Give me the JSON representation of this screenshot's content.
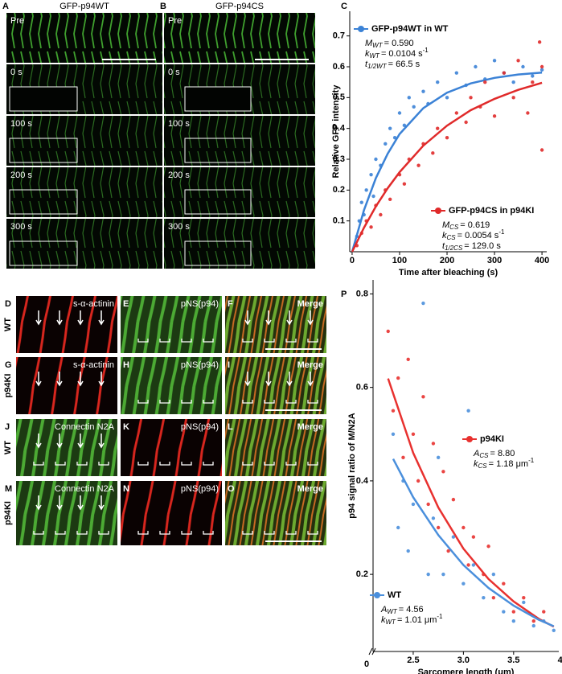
{
  "image_panels": {
    "top": [
      {
        "letter": "A",
        "title": "GFP-p94WT",
        "frames": [
          "Pre",
          "0 s",
          "100 s",
          "200 s",
          "300 s"
        ]
      },
      {
        "letter": "B",
        "title": "GFP-p94CS",
        "frames": [
          "Pre",
          "0 s",
          "100 s",
          "200 s",
          "300 s"
        ]
      }
    ],
    "grid": {
      "row_labels": [
        "WT",
        "p94KI",
        "WT",
        "p94KI"
      ],
      "panels": [
        {
          "letter": "D",
          "label": "s-α-actinin"
        },
        {
          "letter": "E",
          "label": "pNS(p94)"
        },
        {
          "letter": "F",
          "label": "Merge"
        },
        {
          "letter": "G",
          "label": "s-α-actinin"
        },
        {
          "letter": "H",
          "label": "pNS(p94)"
        },
        {
          "letter": "I",
          "label": "Merge"
        },
        {
          "letter": "J",
          "label": "Connectin N2A"
        },
        {
          "letter": "K",
          "label": "pNS(p94)"
        },
        {
          "letter": "L",
          "label": "Merge"
        },
        {
          "letter": "M",
          "label": "Connectin N2A"
        },
        {
          "letter": "N",
          "label": "pNS(p94)"
        },
        {
          "letter": "O",
          "label": "Merge"
        }
      ]
    }
  },
  "chart_data": [
    {
      "type": "scatter",
      "letter": "C",
      "x_label": "Time after bleaching (s)",
      "y_label": "Relative GFP intensity",
      "xlim": [
        -5,
        410
      ],
      "ylim": [
        0,
        0.78
      ],
      "xticks": [
        0,
        100,
        200,
        300,
        400
      ],
      "yticks": [
        0.1,
        0.2,
        0.3,
        0.4,
        0.5,
        0.6,
        0.7
      ],
      "series": [
        {
          "name": "GFP-p94WT in WT",
          "color": "#3b82d6",
          "x": [
            10,
            15,
            20,
            25,
            30,
            40,
            45,
            50,
            60,
            70,
            80,
            90,
            100,
            110,
            120,
            130,
            150,
            160,
            180,
            200,
            220,
            240,
            260,
            280,
            300,
            320,
            340,
            360,
            380,
            400
          ],
          "values": [
            0.05,
            0.1,
            0.16,
            0.12,
            0.2,
            0.25,
            0.18,
            0.3,
            0.28,
            0.35,
            0.4,
            0.37,
            0.45,
            0.41,
            0.5,
            0.47,
            0.52,
            0.48,
            0.55,
            0.5,
            0.58,
            0.54,
            0.6,
            0.56,
            0.62,
            0.58,
            0.55,
            0.6,
            0.57,
            0.59
          ],
          "fit": {
            "x": [
              0,
              25,
              50,
              75,
              100,
              150,
              200,
              250,
              300,
              350,
              400
            ],
            "values": [
              0,
              0.135,
              0.239,
              0.318,
              0.382,
              0.466,
              0.516,
              0.546,
              0.564,
              0.575,
              0.581
            ]
          },
          "params": [
            {
              "sym": "M",
              "sub": "WT",
              "rest": "= 0.590"
            },
            {
              "sym": "k",
              "sub": "WT",
              "rest": "= 0.0104 s",
              "sup": "-1"
            },
            {
              "sym": "t",
              "sub": "1/2WT",
              "rest": "= 66.5 s"
            }
          ]
        },
        {
          "name": "GFP-p94CS in p94KI",
          "color": "#e02a2a",
          "x": [
            10,
            20,
            30,
            40,
            50,
            60,
            70,
            80,
            100,
            110,
            120,
            140,
            150,
            170,
            180,
            200,
            220,
            240,
            250,
            270,
            280,
            300,
            320,
            340,
            350,
            370,
            380,
            395,
            400,
            400
          ],
          "values": [
            0.02,
            0.06,
            0.1,
            0.08,
            0.15,
            0.12,
            0.2,
            0.17,
            0.25,
            0.22,
            0.3,
            0.28,
            0.35,
            0.32,
            0.4,
            0.37,
            0.45,
            0.42,
            0.5,
            0.47,
            0.55,
            0.44,
            0.58,
            0.5,
            0.62,
            0.45,
            0.55,
            0.68,
            0.33,
            0.6
          ],
          "fit": {
            "x": [
              0,
              25,
              50,
              75,
              100,
              150,
              200,
              250,
              300,
              350,
              400
            ],
            "values": [
              0,
              0.078,
              0.147,
              0.206,
              0.258,
              0.344,
              0.409,
              0.459,
              0.496,
              0.525,
              0.548
            ]
          },
          "params": [
            {
              "sym": "M",
              "sub": "CS",
              "rest": "= 0.619"
            },
            {
              "sym": "k",
              "sub": "CS",
              "rest": "= 0.0054 s",
              "sup": "-1"
            },
            {
              "sym": "t",
              "sub": "1/2CS",
              "rest": "= 129.0 s"
            }
          ]
        }
      ]
    },
    {
      "type": "scatter",
      "letter": "P",
      "x_label": "Sarcomere length (μm)",
      "y_label": "p94 signal ratio of M/N2A",
      "x_origin_label": "0",
      "xlim": [
        2.1,
        3.95
      ],
      "ylim": [
        0.035,
        0.83
      ],
      "xticks": [
        2.5,
        {
          "value": 3,
          "label": "3.0"
        },
        3.5,
        {
          "value": 4,
          "label": "4.0"
        }
      ],
      "yticks": [
        0.2,
        0.4,
        0.6,
        0.8
      ],
      "series": [
        {
          "name": "p94KI",
          "color": "#e8312f",
          "x": [
            2.25,
            2.3,
            2.35,
            2.4,
            2.45,
            2.5,
            2.55,
            2.6,
            2.65,
            2.7,
            2.75,
            2.8,
            2.85,
            2.9,
            3.0,
            3.05,
            3.1,
            3.2,
            3.25,
            3.3,
            3.4,
            3.5,
            3.6,
            3.7,
            3.8
          ],
          "values": [
            0.72,
            0.55,
            0.62,
            0.45,
            0.66,
            0.5,
            0.4,
            0.58,
            0.35,
            0.48,
            0.3,
            0.42,
            0.25,
            0.36,
            0.3,
            0.22,
            0.28,
            0.2,
            0.26,
            0.15,
            0.18,
            0.12,
            0.15,
            0.1,
            0.12
          ],
          "fit": {
            "x": [
              2.25,
              2.5,
              2.75,
              3.0,
              3.25,
              3.5,
              3.75,
              3.9
            ],
            "values": [
              0.619,
              0.46,
              0.343,
              0.255,
              0.19,
              0.142,
              0.105,
              0.088
            ]
          },
          "params": [
            {
              "sym": "A",
              "sub": "CS",
              "rest": "= 8.80"
            },
            {
              "sym": "k",
              "sub": "CS",
              "rest": "= 1.18 μm",
              "sup": "-1"
            }
          ]
        },
        {
          "name": "WT",
          "color": "#4a8fdc",
          "x": [
            2.3,
            2.35,
            2.4,
            2.45,
            2.5,
            2.6,
            2.65,
            2.7,
            2.75,
            2.8,
            2.9,
            3.0,
            3.05,
            3.1,
            3.2,
            3.3,
            3.4,
            3.5,
            3.6,
            3.7,
            3.8,
            3.9
          ],
          "values": [
            0.5,
            0.3,
            0.4,
            0.25,
            0.35,
            0.78,
            0.2,
            0.32,
            0.45,
            0.2,
            0.28,
            0.18,
            0.55,
            0.22,
            0.15,
            0.2,
            0.12,
            0.1,
            0.14,
            0.09,
            0.1,
            0.08
          ],
          "fit": {
            "x": [
              2.3,
              2.5,
              2.75,
              3.0,
              3.25,
              3.5,
              3.75,
              3.9
            ],
            "values": [
              0.447,
              0.365,
              0.284,
              0.22,
              0.171,
              0.133,
              0.103,
              0.089
            ]
          },
          "params": [
            {
              "sym": "A",
              "sub": "WT",
              "rest": "= 4.56"
            },
            {
              "sym": "k",
              "sub": "WT",
              "rest": "= 1.01 μm",
              "sup": "-1"
            }
          ]
        }
      ]
    }
  ]
}
